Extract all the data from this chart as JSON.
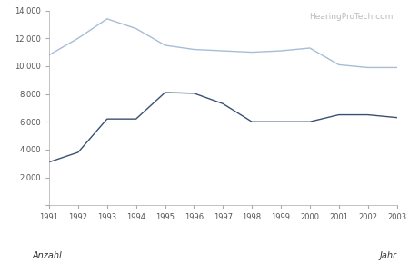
{
  "years": [
    1991,
    1992,
    1993,
    1994,
    1995,
    1996,
    1997,
    1998,
    1999,
    2000,
    2001,
    2002,
    2003
  ],
  "series1": [
    10800,
    12000,
    13400,
    12700,
    11500,
    11200,
    11100,
    11000,
    11100,
    11300,
    10100,
    9900,
    9900
  ],
  "series2": [
    3100,
    3800,
    6200,
    6200,
    8100,
    8050,
    7300,
    6000,
    6000,
    6000,
    6500,
    6500,
    6300
  ],
  "series1_color": "#a8bcd8",
  "series2_color": "#3b5070",
  "xlabel_left": "Anzahl",
  "xlabel_right": "Jahr",
  "watermark": "HearingProTech.com",
  "ylim": [
    0,
    14000
  ],
  "yticks": [
    0,
    2000,
    4000,
    6000,
    8000,
    10000,
    12000,
    14000
  ],
  "background_color": "#ffffff"
}
